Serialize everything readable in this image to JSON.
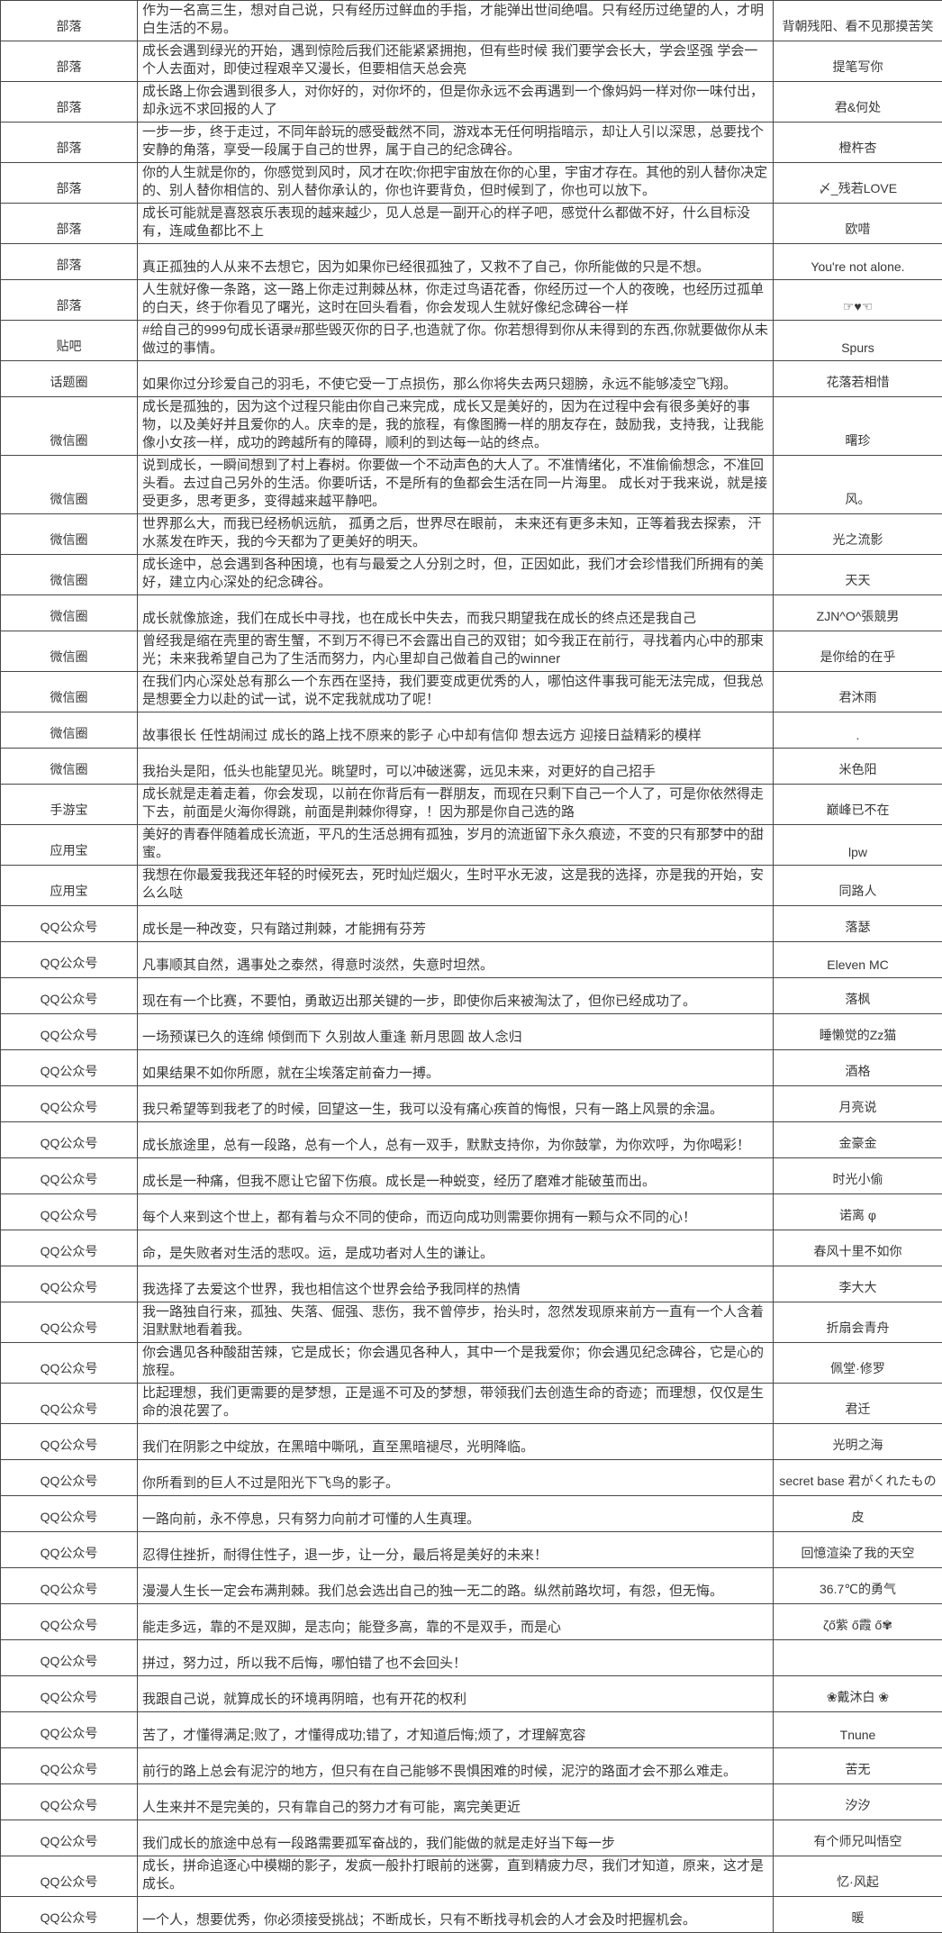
{
  "colors": {
    "border": "#474747",
    "text": "#383838",
    "background": "#ffffff"
  },
  "table": {
    "rows": [
      {
        "category": "部落",
        "quote": "作为一名高三生，想对自己说，只有经历过鲜血的手指，才能弹出世间绝唱。只有经历过绝望的人，才明白生活的不易。",
        "author": "背朝残阳、看不见那摸苦笑"
      },
      {
        "category": "部落",
        "quote": "成长会遇到绿光的开始，遇到惊险后我们还能紧紧拥抱，但有些时候 我们要学会长大，学会坚强 学会一个人去面对，即使过程艰辛又漫长，但要相信天总会亮",
        "author": "提笔写你"
      },
      {
        "category": "部落",
        "quote": "成长路上你会遇到很多人，对你好的，对你坏的，但是你永远不会再遇到一个像妈妈一样对你一味付出，却永远不求回报的人了",
        "author": "君&何处"
      },
      {
        "category": "部落",
        "quote": "一步一步，终于走过，不同年龄玩的感受截然不同，游戏本无任何明指暗示，却让人引以深思，总要找个安静的角落，享受一段属于自己的世界，属于自己的纪念碑谷。",
        "author": "橙杵杏"
      },
      {
        "category": "部落",
        "quote": "你的人生就是你的，你感觉到风时，风才在吹;你把宇宙放在你的心里，宇宙才存在。其他的别人替你决定的、别人替你相信的、别人替你承认的，你也许要背负，但时候到了，你也可以放下。",
        "author": "〆_残若LOVE"
      },
      {
        "category": "部落",
        "quote": "成长可能就是喜怒哀乐表现的越来越少，见人总是一副开心的样子吧，感觉什么都做不好，什么目标没有，连咸鱼都比不上",
        "author": "欧唶"
      },
      {
        "category": "部落",
        "quote": "真正孤独的人从来不去想它，因为如果你已经很孤独了，又救不了自己，你所能做的只是不想。",
        "author": "You're not alone."
      },
      {
        "category": "部落",
        "quote": "人生就好像一条路，这一路上你走过荆棘丛林，你走过鸟语花香，你经历过一个人的夜晚，也经历过孤单的白天，终于你看见了曙光，这时在回头看看，你会发现人生就好像纪念碑谷一样",
        "author": "☞♥☜"
      },
      {
        "category": "贴吧",
        "quote": "#给自己的999句成长语录#那些毁灭你的日子,也造就了你。你若想得到你从未得到的东西,你就要做你从未做过的事情。",
        "author": "Spurs"
      },
      {
        "category": "话题圈",
        "quote": "如果你过分珍爱自己的羽毛，不使它受一丁点损伤，那么你将失去两只翅膀，永远不能够凌空飞翔。",
        "author": "花落若相惜"
      },
      {
        "category": "微信圈",
        "quote": "成长是孤独的，因为这个过程只能由你自己来完成，成长又是美好的，因为在过程中会有很多美好的事物，以及美好并且爱你的人。庆幸的是，我的旅程，有像图腾一样的朋友存在，鼓励我，支持我，让我能像小女孩一样，成功的跨越所有的障碍，顺利的到达每一站的终点。",
        "author": "曙珍"
      },
      {
        "category": "微信圈",
        "quote": "说到成长，一瞬间想到了村上春树。你要做一个不动声色的大人了。不准情绪化，不准偷偷想念，不准回头看。去过自己另外的生活。你要听话，不是所有的鱼都会生活在同一片海里。 成长对于我来说，就是接受更多，思考更多，变得越来越平静吧。",
        "author": "风。"
      },
      {
        "category": "微信圈",
        "quote": "世界那么大，而我已经杨帆远航， 孤勇之后，世界尽在眼前， 未来还有更多未知，正等着我去探索， 汗水蒸发在昨天，我的今天都为了更美好的明天。",
        "author": "光之流影"
      },
      {
        "category": "微信圈",
        "quote": "成长途中，总会遇到各种困境，也有与最爱之人分别之时，但，正因如此，我们才会珍惜我们所拥有的美好，建立内心深处的纪念碑谷。",
        "author": "天天"
      },
      {
        "category": "微信圈",
        "quote": "成长就像旅途，我们在成长中寻找，也在成长中失去，而我只期望我在成长的终点还是我自己",
        "author": "ZJN^O^張競男"
      },
      {
        "category": "微信圈",
        "quote": "曾经我是缩在壳里的寄生蟹，不到万不得已不会露出自己的双钳；如今我正在前行，寻找着内心中的那束光；未来我希望自己为了生活而努力，内心里却自己做着自己的winner",
        "author": "是你给的在乎"
      },
      {
        "category": "微信圈",
        "quote": "在我们内心深处总有那么一个东西在坚持，我们要变成更优秀的人，哪怕这件事我可能无法完成，但我总是想要全力以赴的试一试，说不定我就成功了呢！",
        "author": "君沐雨"
      },
      {
        "category": "微信圈",
        "quote": "故事很长 任性胡闹过 成长的路上找不原来的影子 心中却有信仰 想去远方 迎接日益精彩的模样",
        "author": "."
      },
      {
        "category": "微信圈",
        "quote": "我抬头是阳，低头也能望见光。眺望时，可以冲破迷雾，远见未来，对更好的自己招手",
        "author": "米色阳"
      },
      {
        "category": "手游宝",
        "quote": "成长就是走着走着，你会发现，以前在你背后有一群朋友，而现在只剩下自己一个人了，可是你依然得走下去，前面是火海你得跳，前面是荆棘你得穿，！因为那是你自己选的路",
        "author": "巅峰已不在"
      },
      {
        "category": "应用宝",
        "quote": "美好的青春伴随着成长流逝，平凡的生活总拥有孤独，岁月的流逝留下永久痕迹，不变的只有那梦中的甜蜜。",
        "author": "lpw"
      },
      {
        "category": "应用宝",
        "quote": "我想在你最爱我我还年轻的时候死去，死时灿烂烟火，生时平水无波，这是我的选择，亦是我的开始，安么么哒",
        "author": "同路人"
      },
      {
        "category": "QQ公众号",
        "quote": "成长是一种改变，只有踏过荆棘，才能拥有芬芳",
        "author": "落瑟"
      },
      {
        "category": "QQ公众号",
        "quote": "凡事顺其自然，遇事处之泰然，得意时淡然，失意时坦然。",
        "author": "Eleven MC"
      },
      {
        "category": "QQ公众号",
        "quote": "现在有一个比赛，不要怕，勇敢迈出那关键的一步，即使你后来被淘汰了，但你已经成功了。",
        "author": "落枫"
      },
      {
        "category": "QQ公众号",
        "quote": "一场预谋已久的连绵 倾倒而下 久别故人重逢 新月思圆 故人念归",
        "author": "睡懒觉的Zz猫"
      },
      {
        "category": "QQ公众号",
        "quote": "如果结果不如你所愿，就在尘埃落定前奋力一搏。",
        "author": "酒格"
      },
      {
        "category": "QQ公众号",
        "quote": "我只希望等到我老了的时候，回望这一生，我可以没有痛心疾首的悔恨，只有一路上风景的余温。",
        "author": "月亮说"
      },
      {
        "category": "QQ公众号",
        "quote": "成长旅途里，总有一段路，总有一个人，总有一双手，默默支持你，为你鼓掌，为你欢呼，为你喝彩！",
        "author": "金豪金"
      },
      {
        "category": "QQ公众号",
        "quote": "成长是一种痛，但我不愿让它留下伤痕。成长是一种蜕变，经历了磨难才能破茧而出。",
        "author": "时光小偷"
      },
      {
        "category": "QQ公众号",
        "quote": "每个人来到这个世上，都有着与众不同的使命，而迈向成功则需要你拥有一颗与众不同的心！",
        "author": "诺离 φ"
      },
      {
        "category": "QQ公众号",
        "quote": "命，是失败者对生活的悲叹。运，是成功者对人生的谦让。",
        "author": "春风十里不如你"
      },
      {
        "category": "QQ公众号",
        "quote": "我选择了去爱这个世界，我也相信这个世界会给予我同样的热情",
        "author": "李大大"
      },
      {
        "category": "QQ公众号",
        "quote": "我一路独自行来，孤独、失落、倔强、悲伤，我不曾停步，抬头时，忽然发现原来前方一直有一个人含着泪默默地看着我。",
        "author": "折扇会青舟"
      },
      {
        "category": "QQ公众号",
        "quote": "你会遇见各种酸甜苦辣，它是成长；你会遇见各种人，其中一个是我爱你；你会遇见纪念碑谷，它是心的旅程。",
        "author": "佩堂·修罗"
      },
      {
        "category": "QQ公众号",
        "quote": "比起理想，我们更需要的是梦想，正是遥不可及的梦想，带领我们去创造生命的奇迹；而理想，仅仅是生命的浪花罢了。",
        "author": "君迁"
      },
      {
        "category": "QQ公众号",
        "quote": "我们在阴影之中绽放，在黑暗中嘶吼，直至黑暗褪尽，光明降临。",
        "author": "光明之海"
      },
      {
        "category": "QQ公众号",
        "quote": "你所看到的巨人不过是阳光下飞鸟的影子。",
        "author": "secret base 君がくれたもの"
      },
      {
        "category": "QQ公众号",
        "quote": "一路向前，永不停息，只有努力向前才可懂的人生真理。",
        "author": "皮"
      },
      {
        "category": "QQ公众号",
        "quote": "忍得住挫折，耐得住性子，退一步，让一分，最后将是美好的未来！",
        "author": "回憶渲染了我的天空"
      },
      {
        "category": "QQ公众号",
        "quote": "漫漫人生长一定会布满荆棘。我们总会选出自己的独一无二的路。纵然前路坎坷，有怨，但无悔。",
        "author": "36.7℃的勇气"
      },
      {
        "category": "QQ公众号",
        "quote": "能走多远，靠的不是双脚，是志向；能登多高，靠的不是双手，而是心",
        "author": "ζő紫 ő霞 ő✾"
      },
      {
        "category": "QQ公众号",
        "quote": "拼过，努力过，所以我不后悔，哪怕错了也不会回头！",
        "author": ""
      },
      {
        "category": "QQ公众号",
        "quote": "我跟自己说，就算成长的环境再阴暗，也有开花的权利",
        "author": "❀戴沐白 ❀"
      },
      {
        "category": "QQ公众号",
        "quote": "苦了，才懂得满足;败了，才懂得成功;错了，才知道后悔;烦了，才理解宽容",
        "author": "Tnune"
      },
      {
        "category": "QQ公众号",
        "quote": "前行的路上总会有泥泞的地方，但只有在自己能够不畏惧困难的时候，泥泞的路面才会不那么难走。",
        "author": "苦无"
      },
      {
        "category": "QQ公众号",
        "quote": "人生来并不是完美的，只有靠自己的努力才有可能，离完美更近",
        "author": "汐汐"
      },
      {
        "category": "QQ公众号",
        "quote": "我们成长的旅途中总有一段路需要孤军奋战的，我们能做的就是走好当下每一步",
        "author": "有个师兄叫悟空"
      },
      {
        "category": "QQ公众号",
        "quote": "成长，拼命追逐心中模糊的影子，发疯一般扑打眼前的迷雾，直到精疲力尽，我们才知道，原来，这才是成长。",
        "author": "忆·风起"
      },
      {
        "category": "QQ公众号",
        "quote": "一个人，想要优秀，你必须接受挑战；不断成长，只有不断找寻机会的人才会及时把握机会。",
        "author": "暖"
      }
    ]
  }
}
